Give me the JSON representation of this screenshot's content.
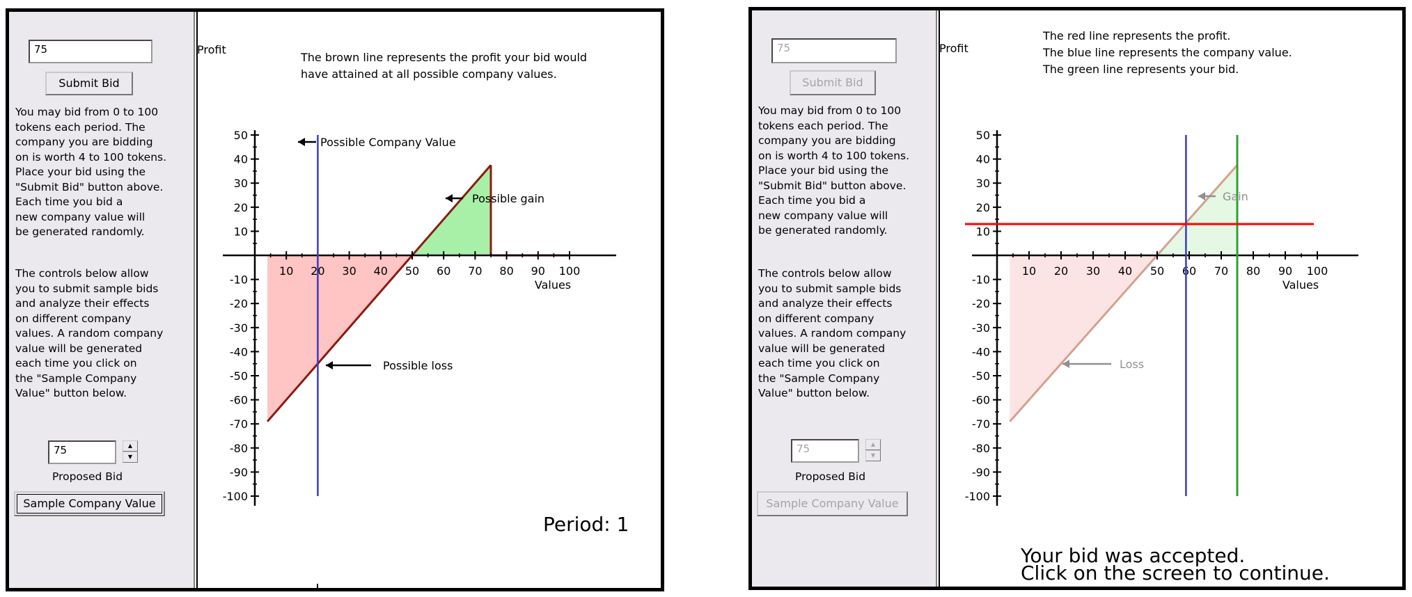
{
  "left": {
    "bid_value": "75",
    "submit_label": "Submit Bid",
    "instructions": "You may bid from 0 to 100\ntokens each period.  The\ncompany you are bidding\non is worth 4 to 100 tokens.\nPlace your bid using the\n\"Submit Bid\" button above.\nEach time you bid a\nnew company value will\nbe generated randomly.",
    "controls_text": "The controls below allow\nyou to submit sample bids\nand analyze their effects\non different company\nvalues.  A random company\nvalue will be generated\neach time you click on\nthe \"Sample Company\nValue\" button below.",
    "proposed_value": "75",
    "proposed_label": "Proposed Bid",
    "sample_label": "Sample Company Value",
    "chart_text": {
      "ylabel": "Profit",
      "xlabel": "Values",
      "note_line1": "The brown line represents the profit your bid would",
      "note_line2": "have attained at all possible company values.",
      "label_company_value": "Possible Company Value",
      "label_gain": "Possible gain",
      "label_loss": "Possible loss",
      "period": "Period:  1"
    }
  },
  "right": {
    "bid_value": "75",
    "submit_label": "Submit Bid",
    "instructions": "You may bid from 0 to 100\ntokens each period.  The\ncompany you are bidding\non is worth 4 to 100 tokens.\nPlace your bid using the\n\"Submit Bid\" button above.\nEach time you bid a\nnew company value will\nbe generated randomly.",
    "controls_text": "The controls below allow\nyou to submit sample bids\nand analyze their effects\non different company\nvalues.  A random company\nvalue will be generated\neach time you click on\nthe \"Sample Company\nValue\" button below.",
    "proposed_value": "75",
    "proposed_label": "Proposed Bid",
    "sample_label": "Sample Company Value",
    "chart_text": {
      "ylabel": "Profit",
      "xlabel": "Values",
      "note_line1": "The red line represents the profit.",
      "note_line2": "The blue line represents the company value.",
      "note_line3": "The green line represents your bid.",
      "label_gain": "Gain",
      "label_loss": "Loss",
      "result_line1": "Your bid was accepted.",
      "result_line2": "Click on the screen to continue."
    }
  },
  "chart_data": [
    {
      "type": "line",
      "title": "",
      "xlabel": "Values",
      "ylabel": "Profit",
      "xlim": [
        0,
        100
      ],
      "ylim": [
        -100,
        50
      ],
      "x_ticks": [
        10,
        20,
        30,
        40,
        50,
        60,
        70,
        80,
        90,
        100
      ],
      "y_ticks": [
        50,
        40,
        30,
        20,
        10,
        -10,
        -20,
        -30,
        -40,
        -50,
        -60,
        -70,
        -80,
        -90,
        -100
      ],
      "bid": 75,
      "company_value": 20,
      "series": [
        {
          "color": "#8b1a10",
          "x": [
            4,
            75,
            75,
            100
          ],
          "y": [
            -69,
            37.5,
            0,
            0
          ]
        }
      ],
      "gain_region": {
        "from": 50,
        "to": 75,
        "color": "#a8f0a8"
      },
      "loss_region": {
        "from": 4,
        "to": 50,
        "color": "#ffc4c4"
      },
      "colors": {
        "company_value_line": "#3b3bc0"
      }
    },
    {
      "type": "line",
      "title": "",
      "xlabel": "Values",
      "ylabel": "Profit",
      "xlim": [
        0,
        100
      ],
      "ylim": [
        -100,
        50
      ],
      "x_ticks": [
        10,
        20,
        30,
        40,
        50,
        60,
        70,
        80,
        90,
        100
      ],
      "y_ticks": [
        50,
        40,
        30,
        20,
        10,
        -10,
        -20,
        -30,
        -40,
        -50,
        -60,
        -70,
        -80,
        -90,
        -100
      ],
      "bid": 75,
      "company_value": 59,
      "profit": 13,
      "series": [
        {
          "color": "#d4a090",
          "x": [
            4,
            75
          ],
          "y": [
            -69,
            37.5
          ]
        }
      ],
      "gain_region": {
        "from": 50,
        "to": 75,
        "color": "#e4f8e4"
      },
      "loss_region": {
        "from": 4,
        "to": 50,
        "color": "#fde4e4"
      },
      "colors": {
        "profit_line": "#ff0000",
        "company_value_line": "#3b3bc0",
        "bid_line": "#30a030"
      }
    }
  ]
}
